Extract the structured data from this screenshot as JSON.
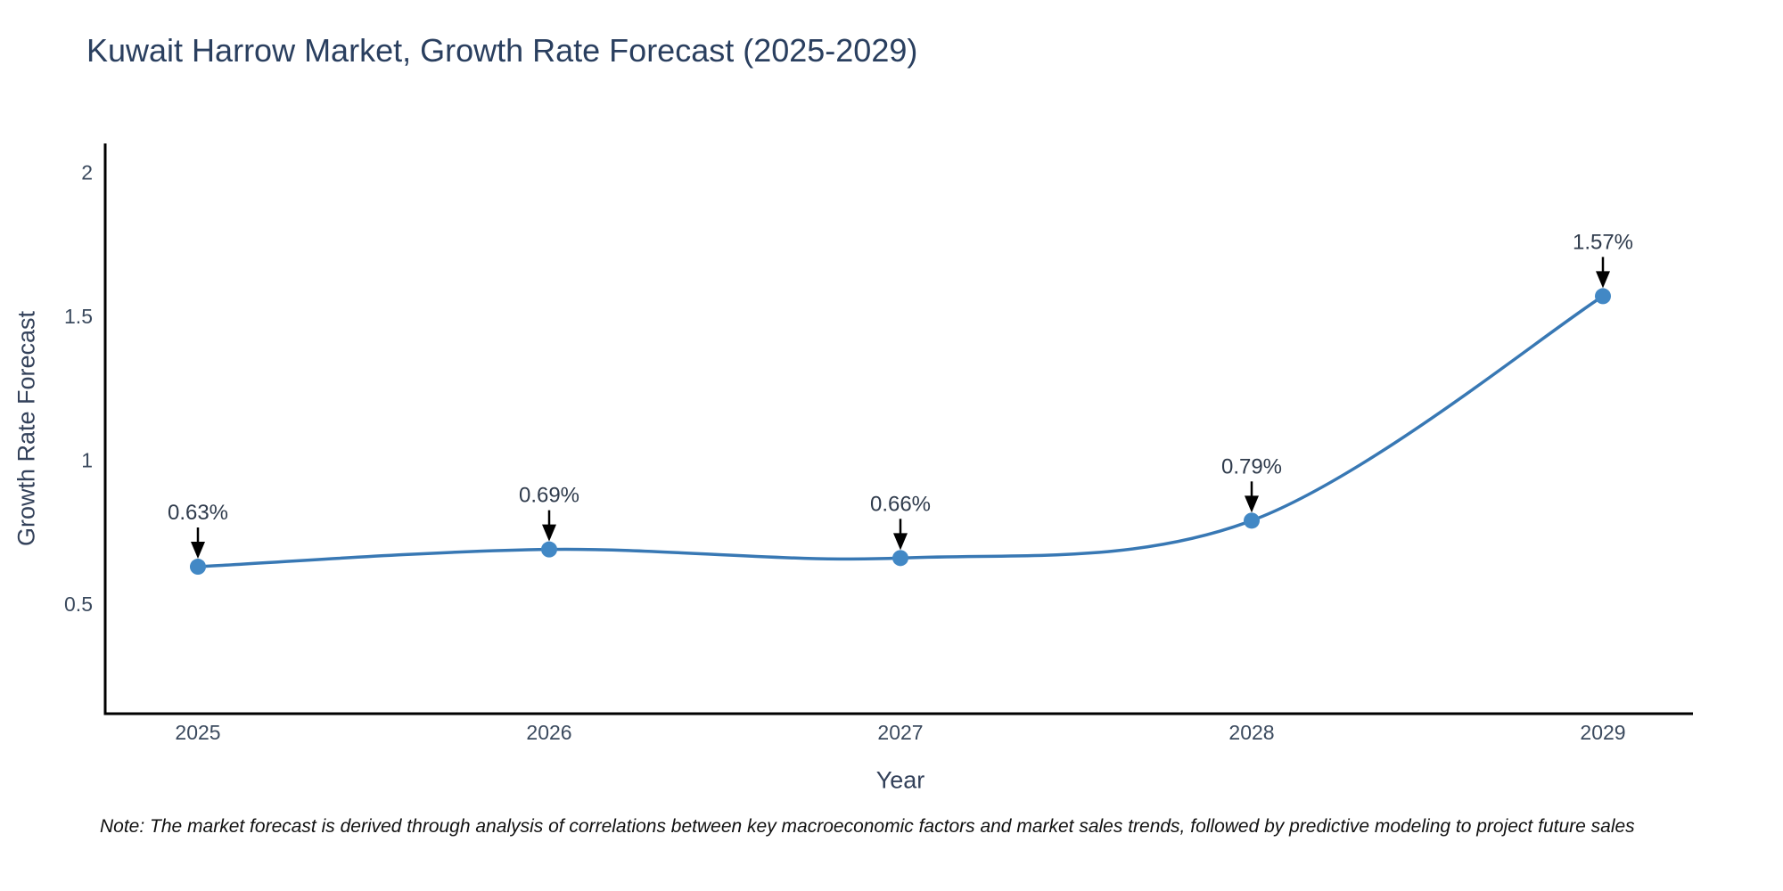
{
  "title": "Kuwait Harrow Market, Growth Rate Forecast (2025-2029)",
  "note": "Note: The market forecast is derived through analysis of correlations between key macroeconomic factors and market sales trends, followed by predictive modeling to project future sales",
  "chart_data": {
    "type": "line",
    "title": "Kuwait Harrow Market, Growth Rate Forecast (2025-2029)",
    "xlabel": "Year",
    "ylabel": "Growth Rate Forecast",
    "categories": [
      "2025",
      "2026",
      "2027",
      "2028",
      "2029"
    ],
    "values": [
      0.63,
      0.69,
      0.66,
      0.79,
      1.57
    ],
    "point_labels": [
      "0.63%",
      "0.69%",
      "0.66%",
      "0.79%",
      "1.57%"
    ],
    "yticks": [
      0.5,
      1,
      1.5,
      2
    ],
    "ylim": [
      0.12,
      2.1
    ],
    "grid": false,
    "legend": "none",
    "smooth": true,
    "annotation_style": "label-with-down-arrow"
  },
  "colors": {
    "line": "#3878b4",
    "marker": "#4288c5",
    "axis": "#000000",
    "title_text": "#2a3f5f",
    "tick_text": "#3b4a5e",
    "annotation_text": "#2f3b4c",
    "arrow": "#000000",
    "background": "#ffffff"
  }
}
